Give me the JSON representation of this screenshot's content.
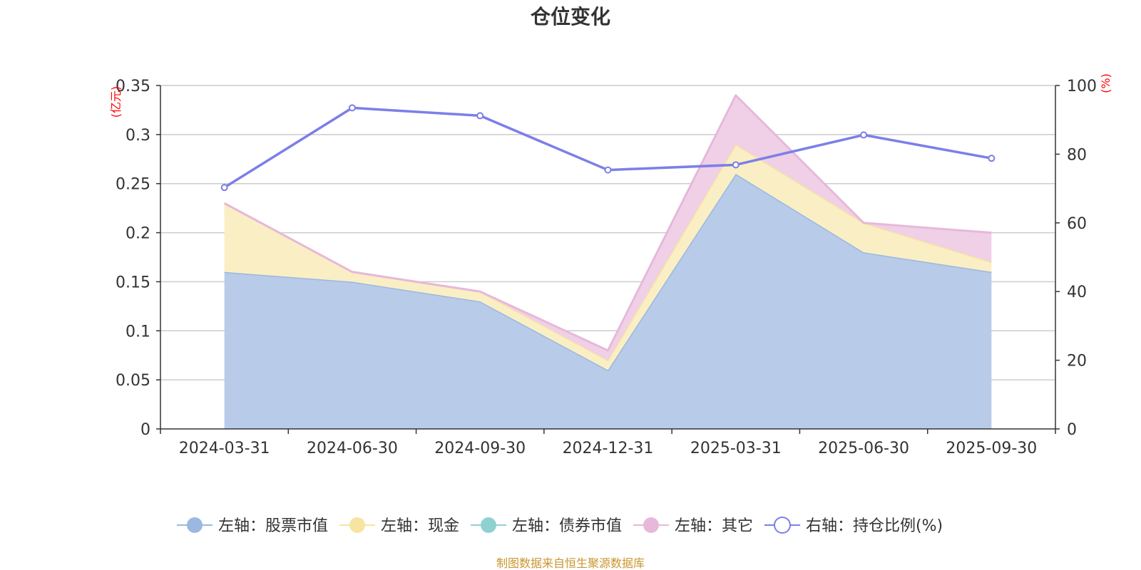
{
  "chart_data": {
    "type": "area",
    "title": "仓位变化",
    "categories": [
      "2024-03-31",
      "2024-06-30",
      "2024-09-30",
      "2024-12-31",
      "2025-03-31",
      "2025-06-30",
      "2025-09-30"
    ],
    "stacked": true,
    "left_axis": {
      "unit": "(亿元)",
      "ylim": [
        0,
        0.35
      ],
      "ticks": [
        "0",
        "0.05",
        "0.1",
        "0.15",
        "0.2",
        "0.25",
        "0.3",
        "0.35"
      ]
    },
    "right_axis": {
      "unit": "(%)",
      "ylim": [
        0,
        100
      ],
      "ticks": [
        "0",
        "20",
        "40",
        "60",
        "80",
        "100"
      ]
    },
    "grid": true,
    "legend_position": "bottom",
    "series": [
      {
        "name": "左轴：股票市值",
        "axis": "left",
        "kind": "area",
        "color": "#9bb8e0",
        "fill": "#b8cbe9",
        "values": [
          0.16,
          0.15,
          0.13,
          0.06,
          0.26,
          0.18,
          0.16
        ]
      },
      {
        "name": "左轴：现金",
        "axis": "left",
        "kind": "area",
        "color": "#f7e4a0",
        "fill": "#faefc4",
        "values": [
          0.07,
          0.01,
          0.01,
          0.01,
          0.03,
          0.03,
          0.01
        ]
      },
      {
        "name": "左轴：债券市值",
        "axis": "left",
        "kind": "area",
        "color": "#8fd1d1",
        "fill": "#b8e3e3",
        "values": [
          0,
          0,
          0,
          0,
          0,
          0,
          0
        ]
      },
      {
        "name": "左轴：其它",
        "axis": "left",
        "kind": "area",
        "color": "#e7b8da",
        "fill": "#efd0e6",
        "values": [
          0.0,
          0.0,
          0.0,
          0.01,
          0.05,
          0.0,
          0.03
        ]
      },
      {
        "name": "右轴：持仓比例(%)",
        "axis": "right",
        "kind": "line",
        "color": "#7b7fe8",
        "values": [
          70.3,
          93.5,
          91.2,
          75.4,
          76.9,
          85.6,
          78.8
        ]
      }
    ],
    "source_note": "制图数据来自恒生聚源数据库"
  },
  "colors": {
    "axis": "#333333",
    "grid": "#cccccc",
    "unit_label": "#ff0000",
    "source_note": "#c8962e"
  }
}
